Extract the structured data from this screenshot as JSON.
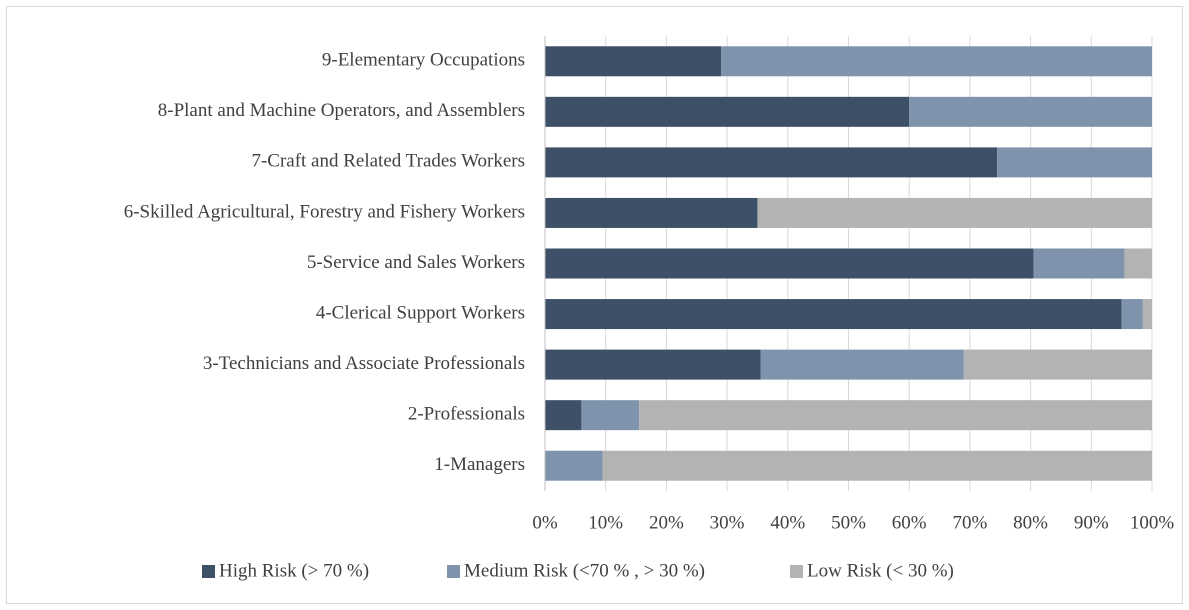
{
  "chart_data": {
    "type": "stacked_barh",
    "categories": [
      "9-Elementary Occupations",
      "8-Plant and Machine Operators, and Assemblers",
      "7-Craft and Related Trades Workers",
      "6-Skilled Agricultural, Forestry and Fishery Workers",
      "5-Service and Sales Workers",
      "4-Clerical Support Workers",
      "3-Technicians and Associate Professionals",
      "2-Professionals",
      "1-Managers"
    ],
    "series": [
      {
        "name": "High Risk (> 70 %)",
        "color": "#3e5068",
        "values": [
          29,
          60,
          74.5,
          35,
          80.5,
          95,
          35.5,
          6,
          0
        ]
      },
      {
        "name": "Medium Risk  (<70 % , > 30 %)",
        "color": "#7f93ad",
        "values": [
          71,
          40,
          25.5,
          0,
          15,
          3.5,
          33.5,
          9.5,
          9.5
        ]
      },
      {
        "name": "Low Risk (< 30 %)",
        "color": "#b3b3b3",
        "values": [
          0,
          0,
          0,
          65,
          4.5,
          1.5,
          31,
          84.5,
          90.5
        ]
      }
    ],
    "xlim": [
      0,
      100
    ],
    "xticks": [
      {
        "value": 0,
        "label": "0%"
      },
      {
        "value": 10,
        "label": "10%"
      },
      {
        "value": 20,
        "label": "20%"
      },
      {
        "value": 30,
        "label": "30%"
      },
      {
        "value": 40,
        "label": "40%"
      },
      {
        "value": 50,
        "label": "50%"
      },
      {
        "value": 60,
        "label": "60%"
      },
      {
        "value": 70,
        "label": "70%"
      },
      {
        "value": 80,
        "label": "80%"
      },
      {
        "value": 90,
        "label": "90%"
      },
      {
        "value": 100,
        "label": "100%"
      }
    ],
    "grid": true,
    "legend": "bottom"
  }
}
